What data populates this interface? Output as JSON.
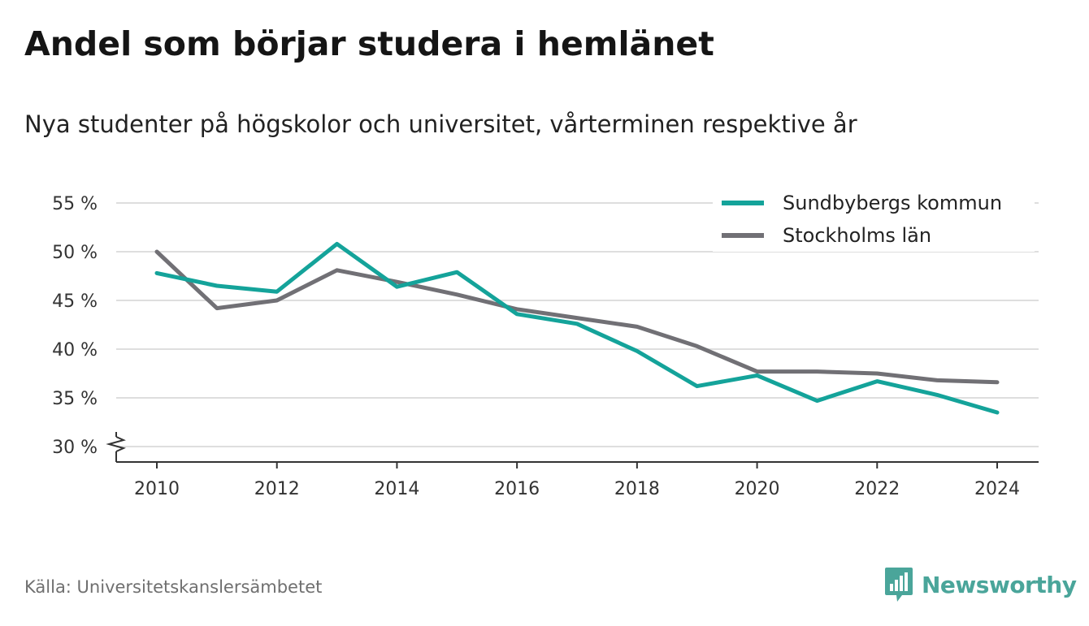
{
  "header": {
    "title": "Andel som börjar studera i hemlänet",
    "subtitle": "Nya studenter på högskolor och universitet, vårterminen respektive år"
  },
  "footer": {
    "source": "Källa: Universitetskanslersämbetet",
    "brand": "Newsworthy"
  },
  "colors": {
    "series1": "#14a39a",
    "series2": "#717075",
    "grid": "#dedede",
    "axis": "#333333",
    "brand": "#4aa59a"
  },
  "chart_data": {
    "type": "line",
    "x": [
      2010,
      2011,
      2012,
      2013,
      2014,
      2015,
      2016,
      2017,
      2018,
      2019,
      2020,
      2021,
      2022,
      2023,
      2024
    ],
    "series": [
      {
        "name": "Sundbybergs kommun",
        "color": "#14a39a",
        "values": [
          47.8,
          46.5,
          45.9,
          50.8,
          46.4,
          47.9,
          43.6,
          42.6,
          39.8,
          36.2,
          37.3,
          34.7,
          36.7,
          35.3,
          33.5
        ]
      },
      {
        "name": "Stockholms län",
        "color": "#717075",
        "values": [
          50.0,
          44.2,
          45.0,
          48.1,
          46.9,
          45.6,
          44.1,
          43.2,
          42.3,
          40.3,
          37.7,
          37.7,
          37.5,
          36.8,
          36.6
        ]
      }
    ],
    "yticks": [
      30,
      35,
      40,
      45,
      50,
      55
    ],
    "ytick_labels": [
      "30 %",
      "35 %",
      "40 %",
      "45 %",
      "50 %",
      "55 %"
    ],
    "xticks": [
      2010,
      2012,
      2014,
      2016,
      2018,
      2020,
      2022,
      2024
    ],
    "xtick_labels": [
      "2010",
      "2012",
      "2014",
      "2016",
      "2018",
      "2020",
      "2022",
      "2024"
    ],
    "ylim": [
      30,
      55
    ],
    "xlim": [
      2010,
      2024
    ],
    "y_axis_break": true,
    "grid": true,
    "legend_position": "top-right"
  }
}
